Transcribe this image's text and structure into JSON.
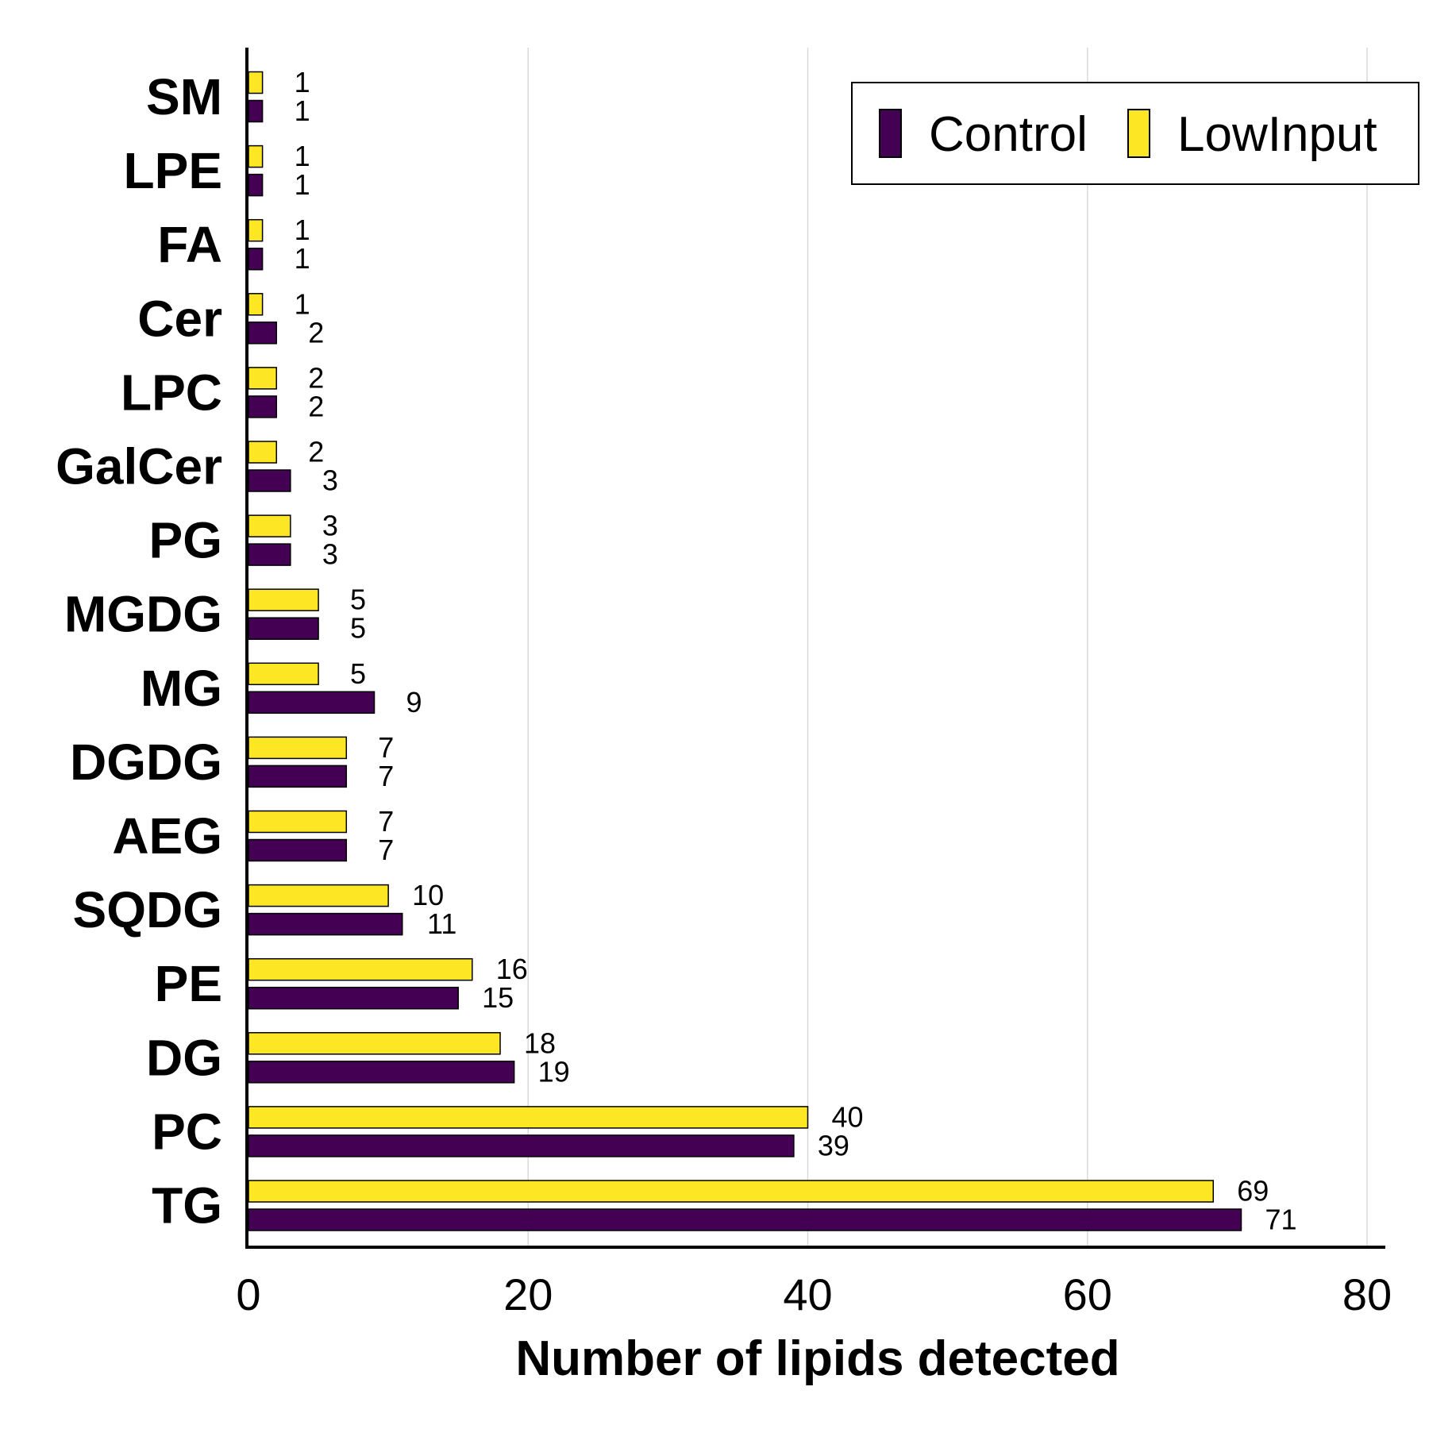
{
  "chart_data": {
    "type": "bar",
    "orientation": "horizontal",
    "categories": [
      "SM",
      "LPE",
      "FA",
      "Cer",
      "LPC",
      "GalCer",
      "PG",
      "MGDG",
      "MG",
      "DGDG",
      "AEG",
      "SQDG",
      "PE",
      "DG",
      "PC",
      "TG"
    ],
    "series": [
      {
        "name": "Control",
        "color": "#440154",
        "values": [
          1,
          1,
          1,
          2,
          2,
          3,
          3,
          5,
          9,
          7,
          7,
          11,
          15,
          19,
          39,
          71
        ]
      },
      {
        "name": "LowInput",
        "color": "#FDE725",
        "values": [
          1,
          1,
          1,
          1,
          2,
          2,
          3,
          5,
          5,
          7,
          7,
          10,
          16,
          18,
          40,
          69
        ]
      }
    ],
    "xlabel": "Number of lipids detected",
    "ylabel": "",
    "xlim": [
      0,
      80
    ],
    "xticks": [
      0,
      20,
      40,
      60,
      80
    ],
    "grid": "vertical",
    "legend_position": "top-right"
  }
}
